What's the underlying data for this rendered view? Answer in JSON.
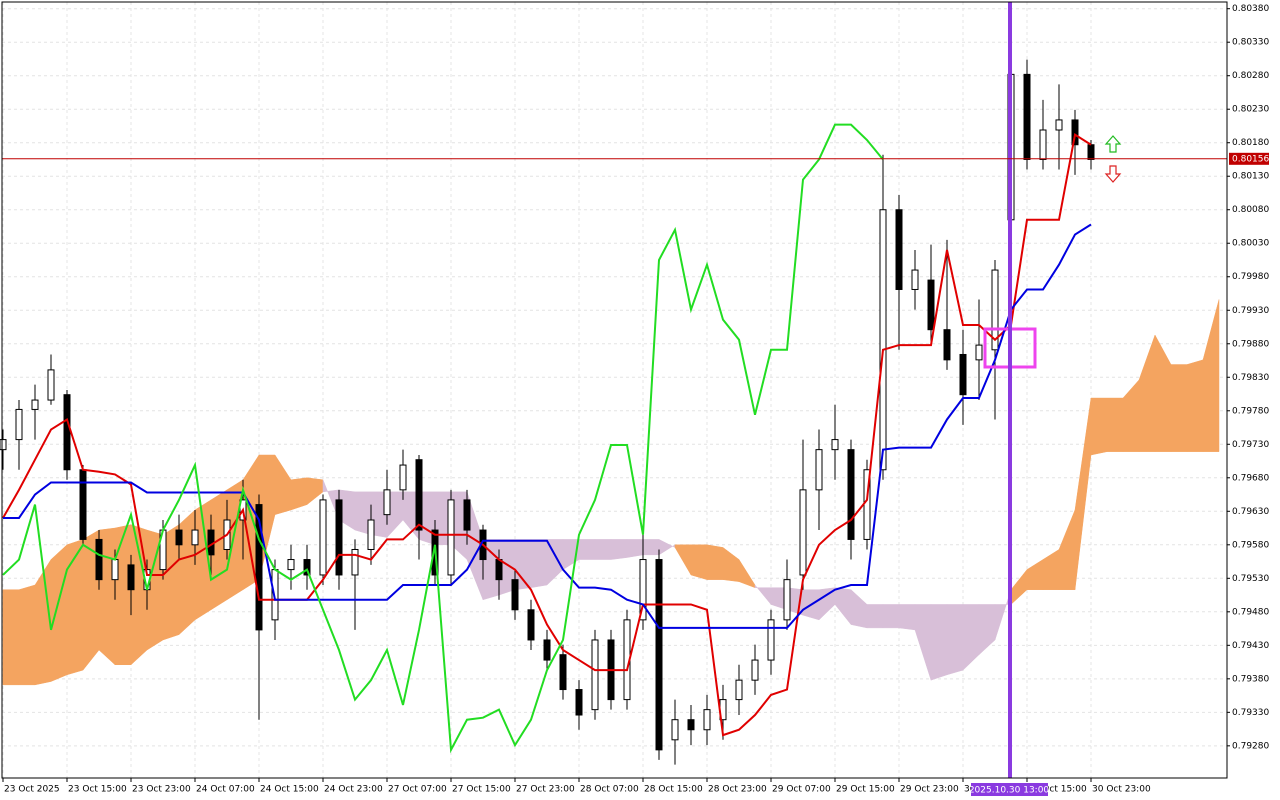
{
  "chart_data": {
    "type": "candlestick",
    "categories": [
      "23 Oct 2025",
      null,
      null,
      null,
      "23 Oct 15:00",
      null,
      null,
      null,
      "23 Oct 23:00",
      null,
      null,
      null,
      "24 Oct 07:00",
      null,
      null,
      null,
      "24 Oct 15:00",
      null,
      null,
      null,
      "24 Oct 23:00",
      null,
      null,
      null,
      "27 Oct 07:00",
      null,
      null,
      null,
      "27 Oct 15:00",
      null,
      null,
      null,
      "27 Oct 23:00",
      null,
      null,
      null,
      "28 Oct 07:00",
      null,
      null,
      null,
      "28 Oct 15:00",
      null,
      null,
      null,
      "28 Oct 23:00",
      null,
      null,
      null,
      "29 Oct 07:00",
      null,
      null,
      null,
      "29 Oct 15:00",
      null,
      null,
      null,
      "29 Oct 23:00",
      null,
      null,
      null,
      "30 Oct 07:00",
      null,
      null,
      null,
      "30 Oct 15:00",
      null,
      null,
      null,
      "30 Oct 23:00",
      null,
      null,
      null,
      null,
      null,
      null,
      null,
      null
    ],
    "open": [
      0.79722,
      0.79737,
      0.79782,
      0.79796,
      0.79804,
      0.79692,
      0.79588,
      0.79528,
      0.7955,
      0.79513,
      0.79543,
      0.79602,
      0.7958,
      0.79602,
      0.79573,
      0.79617,
      0.7964,
      0.79468,
      0.79543,
      0.79558,
      0.79535,
      0.79647,
      0.79535,
      0.79573,
      0.79625,
      0.79662,
      0.79707,
      0.79602,
      0.79535,
      0.79647,
      0.79602,
      0.79558,
      0.79528,
      0.79483,
      0.79438,
      0.79416,
      0.79364,
      0.79334,
      0.79438,
      0.79349,
      0.79468,
      0.79558,
      0.79289,
      0.79319,
      0.79304,
      0.79319,
      0.79349,
      0.79378,
      0.79408,
      0.79468,
      0.79535,
      0.79662,
      0.79722,
      0.79722,
      0.79588,
      0.79692,
      0.8008,
      0.79961,
      0.79975,
      0.79901,
      0.79864,
      0.79856,
      0.79871,
      0.80065,
      0.80282,
      0.80155,
      0.80199,
      0.80214,
      0.80177,
      null,
      null,
      null,
      null,
      null,
      null,
      null,
      null
    ],
    "high": [
      0.79752,
      0.79796,
      0.79819,
      0.79864,
      0.79811,
      0.79699,
      0.79602,
      0.79573,
      0.79565,
      0.79558,
      0.79617,
      0.79625,
      0.79632,
      0.79625,
      0.79647,
      0.79677,
      0.79655,
      0.79558,
      0.7958,
      0.7958,
      0.79655,
      0.79662,
      0.79588,
      0.7964,
      0.79692,
      0.79722,
      0.79714,
      0.79617,
      0.79662,
      0.79662,
      0.7961,
      0.79573,
      0.79543,
      0.79498,
      0.79453,
      0.79431,
      0.79378,
      0.79453,
      0.79453,
      0.79483,
      0.79595,
      0.79573,
      0.79349,
      0.79341,
      0.79356,
      0.79371,
      0.79401,
      0.79431,
      0.79483,
      0.79558,
      0.79737,
      0.79752,
      0.79789,
      0.79737,
      0.79707,
      0.80162,
      0.80102,
      0.8002,
      0.80028,
      0.80035,
      0.79901,
      0.79946,
      0.80005,
      0.80364,
      0.80304,
      0.80244,
      0.80267,
      0.80229,
      0.80184,
      null,
      null,
      null,
      null,
      null,
      null,
      null,
      null
    ],
    "low": [
      0.79692,
      0.79692,
      0.79737,
      0.79789,
      0.79677,
      0.7958,
      0.79513,
      0.79498,
      0.79475,
      0.79483,
      0.79528,
      0.79558,
      0.7955,
      0.79535,
      0.79558,
      0.79558,
      0.79319,
      0.79438,
      0.79513,
      0.79513,
      0.7952,
      0.79513,
      0.79453,
      0.7955,
      0.7961,
      0.79647,
      0.79558,
      0.7952,
      0.7952,
      0.7958,
      0.79528,
      0.79498,
      0.79468,
      0.79423,
      0.79393,
      0.79349,
      0.79304,
      0.79319,
      0.79334,
      0.79334,
      0.79453,
      0.79259,
      0.79252,
      0.79281,
      0.79281,
      0.79289,
      0.79326,
      0.79356,
      0.79386,
      0.79453,
      0.79513,
      0.79602,
      0.79677,
      0.79558,
      0.79573,
      0.79677,
      0.79871,
      0.79931,
      0.79878,
      0.79841,
      0.79759,
      0.79796,
      0.79767,
      0.80035,
      0.8014,
      0.8014,
      0.8014,
      0.80132,
      0.8014,
      null,
      null,
      null,
      null,
      null,
      null,
      null,
      null
    ],
    "close": [
      0.79737,
      0.79782,
      0.79796,
      0.79841,
      0.79692,
      0.79588,
      0.79528,
      0.79558,
      0.79513,
      0.79543,
      0.79602,
      0.7958,
      0.79602,
      0.79565,
      0.79617,
      0.79647,
      0.79453,
      0.79543,
      0.79558,
      0.79535,
      0.79647,
      0.79535,
      0.79573,
      0.79617,
      0.79662,
      0.79699,
      0.79602,
      0.79535,
      0.79647,
      0.79602,
      0.79558,
      0.79528,
      0.79483,
      0.79438,
      0.79408,
      0.79364,
      0.79326,
      0.79438,
      0.79349,
      0.79468,
      0.79558,
      0.79274,
      0.79319,
      0.79304,
      0.79334,
      0.79349,
      0.79378,
      0.79408,
      0.79468,
      0.79528,
      0.79662,
      0.79722,
      0.79737,
      0.79588,
      0.79692,
      0.8008,
      0.79961,
      0.7999,
      0.79901,
      0.79856,
      0.79804,
      0.79878,
      0.7999,
      0.80282,
      0.80155,
      0.80199,
      0.80214,
      0.80177,
      0.80155,
      null,
      null,
      null,
      null,
      null,
      null,
      null,
      null
    ],
    "cloud": {
      "span_a": {
        "color": "#f4a460",
        "values": [
          0.79513,
          0.79513,
          0.7952,
          0.79558,
          0.7958,
          0.79588,
          0.79602,
          0.79605,
          0.7961,
          0.79602,
          0.79595,
          0.7961,
          0.79632,
          0.79647,
          0.79662,
          0.79677,
          0.79714,
          0.79714,
          0.79677,
          0.7968,
          0.79677,
          0.79617,
          0.79602,
          0.79595,
          0.79591,
          0.79617,
          0.79588,
          0.7958,
          0.7958,
          0.79558,
          0.79498,
          0.79505,
          0.79513,
          0.79516,
          0.7952,
          0.79543,
          0.79558,
          0.79558,
          0.79558,
          0.79561,
          0.79565,
          0.79565,
          0.7958,
          0.7958,
          0.7958,
          0.79576,
          0.79558,
          0.7952,
          0.79491,
          0.79483,
          0.79475,
          0.79468,
          0.79491,
          0.79461,
          0.79456,
          0.79456,
          0.79456,
          0.79453,
          0.79378,
          0.79386,
          0.79393,
          0.79416,
          0.79438,
          0.79513,
          0.79543,
          0.79558,
          0.79573,
          0.79632,
          0.79799,
          0.79799,
          0.79799,
          0.79826,
          0.79893,
          0.79849,
          0.79849,
          0.79856,
          0.79946
        ]
      },
      "span_b": {
        "color": "#d8bfd8",
        "values": [
          0.79371,
          0.79371,
          0.79371,
          0.79376,
          0.79386,
          0.79393,
          0.79423,
          0.79401,
          0.79401,
          0.79423,
          0.79438,
          0.79446,
          0.79468,
          0.79483,
          0.79498,
          0.79513,
          0.79528,
          0.79625,
          0.79632,
          0.7964,
          0.79659,
          0.79662,
          0.79659,
          0.79659,
          0.79659,
          0.79659,
          0.79659,
          0.79659,
          0.79659,
          0.79659,
          0.79588,
          0.79588,
          0.79588,
          0.79588,
          0.79588,
          0.79588,
          0.79588,
          0.79588,
          0.79588,
          0.79588,
          0.79588,
          0.79588,
          0.79576,
          0.79535,
          0.79528,
          0.79528,
          0.79525,
          0.79516,
          0.79516,
          0.79516,
          0.79513,
          0.79513,
          0.79516,
          0.79513,
          0.79491,
          0.79491,
          0.79491,
          0.79491,
          0.79491,
          0.79491,
          0.79491,
          0.79491,
          0.79491,
          0.79491,
          0.79513,
          0.79513,
          0.79513,
          0.79513,
          0.79714,
          0.79719,
          0.79719,
          0.79719,
          0.79719,
          0.79719,
          0.79719,
          0.79719,
          0.79719
        ]
      }
    },
    "lines": [
      {
        "color": "#e00000",
        "values": [
          0.7962,
          0.79662,
          0.79707,
          0.79752,
          0.79767,
          0.79692,
          0.79689,
          0.79685,
          0.7967,
          0.79535,
          0.79535,
          0.79558,
          0.79565,
          0.7958,
          0.79595,
          0.79632,
          0.79498,
          0.79498,
          0.79498,
          0.79498,
          0.79528,
          0.79565,
          0.79565,
          0.79558,
          0.79588,
          0.79588,
          0.7961,
          0.79595,
          0.79595,
          0.79595,
          0.7958,
          0.79558,
          0.79543,
          0.79513,
          0.79461,
          0.79423,
          0.79408,
          0.79393,
          0.79393,
          0.79393,
          0.79491,
          0.79491,
          0.79491,
          0.79491,
          0.79483,
          0.79296,
          0.79304,
          0.79326,
          0.79356,
          0.79364,
          0.79528,
          0.7958,
          0.79602,
          0.79617,
          0.79647,
          0.79871,
          0.79878,
          0.79878,
          0.79878,
          0.8002,
          0.79908,
          0.79908,
          0.79886,
          0.79908,
          0.80065,
          0.80065,
          0.80065,
          0.80192,
          0.80177,
          null,
          null,
          null,
          null,
          null,
          null,
          null,
          null
        ]
      },
      {
        "color": "#0000e0",
        "values": [
          0.7962,
          0.7962,
          0.79655,
          0.79673,
          0.79673,
          0.79673,
          0.79673,
          0.79673,
          0.79673,
          0.79658,
          0.79658,
          0.79658,
          0.79658,
          0.79658,
          0.79658,
          0.79658,
          0.79617,
          0.79498,
          0.79498,
          0.79498,
          0.79498,
          0.79498,
          0.79498,
          0.79498,
          0.79498,
          0.7952,
          0.7952,
          0.7952,
          0.7952,
          0.79543,
          0.79586,
          0.79586,
          0.79586,
          0.79586,
          0.79586,
          0.79543,
          0.79516,
          0.79516,
          0.79513,
          0.79498,
          0.79491,
          0.79456,
          0.79456,
          0.79456,
          0.79456,
          0.79456,
          0.79456,
          0.79456,
          0.79456,
          0.79456,
          0.79483,
          0.79498,
          0.79513,
          0.7952,
          0.7952,
          0.79722,
          0.79725,
          0.79725,
          0.79725,
          0.79767,
          0.79799,
          0.79799,
          0.79856,
          0.79931,
          0.79961,
          0.79961,
          0.79998,
          0.80043,
          0.80058,
          null,
          null,
          null,
          null,
          null,
          null,
          null,
          null
        ]
      },
      {
        "color": "#22dd22",
        "values": [
          0.79535,
          0.79558,
          0.7964,
          0.79453,
          0.79543,
          0.7958,
          0.79565,
          0.79558,
          0.79625,
          0.79513,
          0.79602,
          0.79647,
          0.79699,
          0.79528,
          0.79543,
          0.79662,
          0.79588,
          0.79543,
          0.79528,
          0.79543,
          0.79483,
          0.79423,
          0.79349,
          0.79378,
          0.79423,
          0.79341,
          0.79453,
          0.7958,
          0.79274,
          0.79319,
          0.79322,
          0.79334,
          0.79281,
          0.79319,
          0.79393,
          0.79438,
          0.79595,
          0.79647,
          0.79729,
          0.79729,
          0.79595,
          0.80005,
          0.8005,
          0.79931,
          0.79998,
          0.79916,
          0.79886,
          0.79774,
          0.79871,
          0.79871,
          0.80125,
          0.80155,
          0.80207,
          0.80207,
          0.80184,
          0.80155,
          null,
          null,
          null,
          null,
          null,
          null,
          null,
          null,
          null,
          null,
          null,
          null,
          null,
          null,
          null,
          null,
          null,
          null,
          null,
          null,
          null
        ]
      }
    ],
    "up_color": "#ffffff",
    "down_color": "#000000",
    "ylim": [
      0.79232,
      0.8039
    ],
    "yticks": [
      {
        "value": 0.8038,
        "label": "0.80380"
      },
      {
        "value": 0.8033,
        "label": "0.80330"
      },
      {
        "value": 0.8028,
        "label": "0.80280"
      },
      {
        "value": 0.8023,
        "label": "0.80230"
      },
      {
        "value": 0.8018,
        "label": "0.80180"
      },
      {
        "value": 0.8013,
        "label": "0.80130"
      },
      {
        "value": 0.8008,
        "label": "0.80080"
      },
      {
        "value": 0.8003,
        "label": "0.80030"
      },
      {
        "value": 0.7998,
        "label": "0.79980"
      },
      {
        "value": 0.7993,
        "label": "0.79930"
      },
      {
        "value": 0.7988,
        "label": "0.79880"
      },
      {
        "value": 0.7983,
        "label": "0.79830"
      },
      {
        "value": 0.7978,
        "label": "0.79780"
      },
      {
        "value": 0.7973,
        "label": "0.79730"
      },
      {
        "value": 0.7968,
        "label": "0.79680"
      },
      {
        "value": 0.7963,
        "label": "0.79630"
      },
      {
        "value": 0.7958,
        "label": "0.79580"
      },
      {
        "value": 0.7953,
        "label": "0.79530"
      },
      {
        "value": 0.7948,
        "label": "0.79480"
      },
      {
        "value": 0.7943,
        "label": "0.79430"
      },
      {
        "value": 0.7938,
        "label": "0.79380"
      },
      {
        "value": 0.7933,
        "label": "0.79330"
      },
      {
        "value": 0.7928,
        "label": "0.79280"
      }
    ],
    "grid": true,
    "current_price": 0.80156,
    "current_price_color": "#c00000",
    "time_marker": "2025.10.30 13:00"
  }
}
